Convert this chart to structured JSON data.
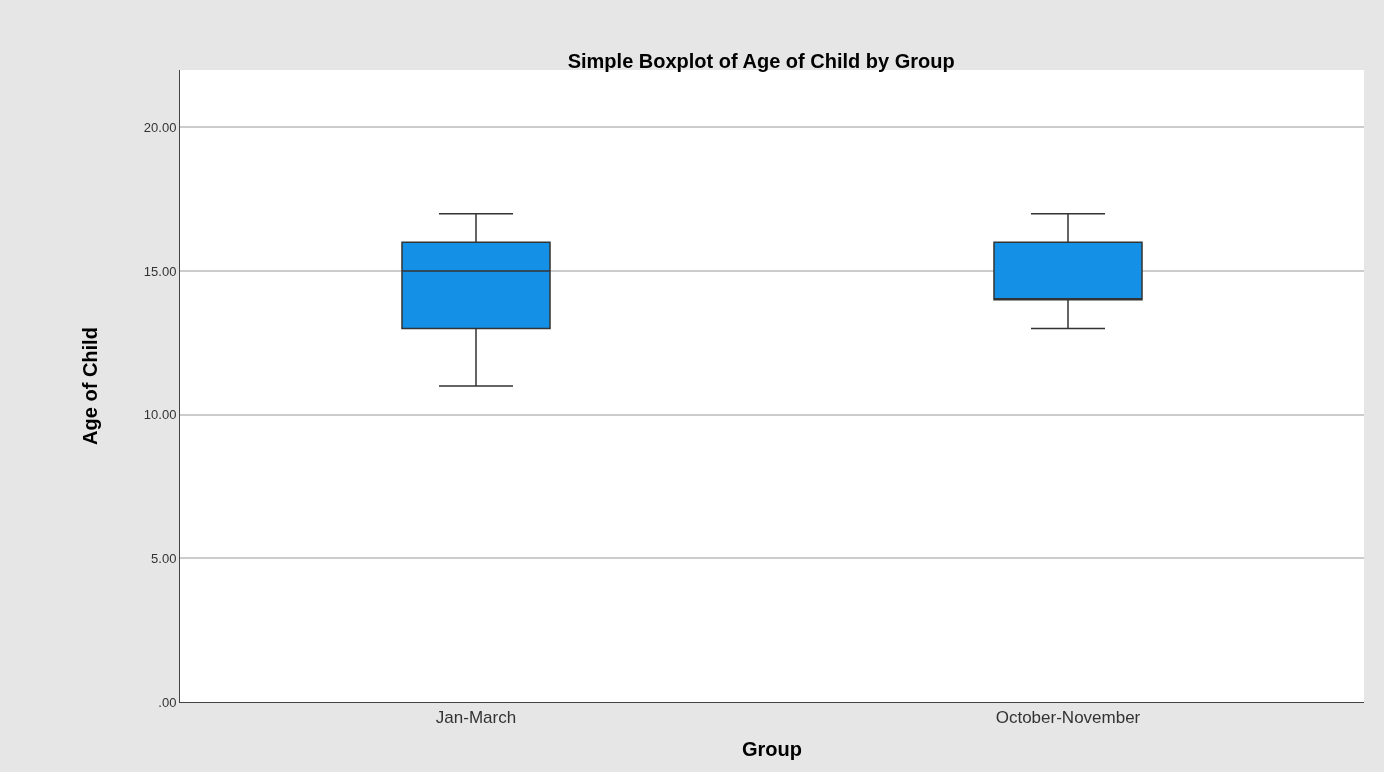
{
  "chart_data": {
    "type": "box",
    "title": "Simple Boxplot of Age of Child by Group",
    "xlabel": "Group",
    "ylabel": "Age of Child",
    "categories": [
      "Jan-March",
      "October-November"
    ],
    "boxes": [
      {
        "low": 11,
        "q1": 13,
        "median": 15,
        "q3": 16,
        "high": 17
      },
      {
        "low": 13,
        "q1": 14,
        "median": 14,
        "q3": 16,
        "high": 17
      }
    ],
    "color": "#1490e6",
    "ylim": [
      0,
      22
    ],
    "yticks": [
      {
        "value": 0,
        "label": ".00"
      },
      {
        "value": 5,
        "label": "5.00"
      },
      {
        "value": 10,
        "label": "10.00"
      },
      {
        "value": 15,
        "label": "15.00"
      },
      {
        "value": 20,
        "label": "20.00"
      }
    ],
    "grid": "y"
  }
}
